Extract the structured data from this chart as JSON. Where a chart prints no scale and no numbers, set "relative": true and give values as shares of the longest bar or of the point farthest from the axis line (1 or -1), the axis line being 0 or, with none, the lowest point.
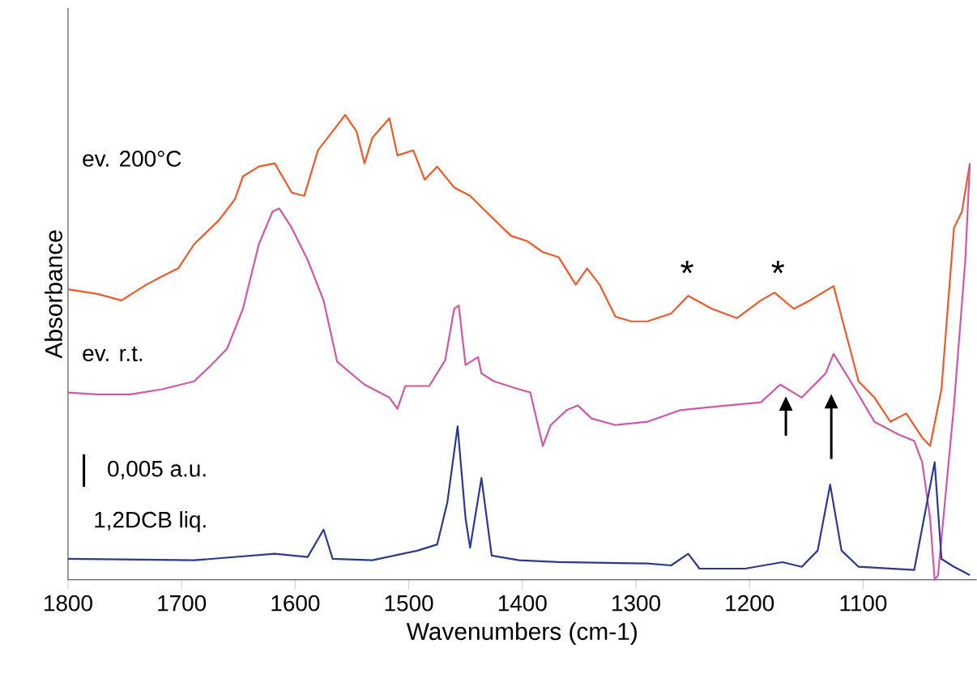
{
  "chart_data": {
    "type": "line",
    "xlabel": "Wavenumbers (cm-1)",
    "ylabel": "Absorbance",
    "relative": true,
    "xlim": [
      1800,
      1000
    ],
    "xticks": [
      1800,
      1700,
      1600,
      1500,
      1400,
      1300,
      1200,
      1100
    ],
    "tick_labels": "x",
    "legend": false,
    "grid": false,
    "marker": "none",
    "line_style": "solid",
    "annotations": [
      "0,005 a.u.",
      "*",
      "*"
    ],
    "series": [
      {
        "name": "ev. 200°C",
        "color": "#f05a28",
        "x": [
          1800,
          1774,
          1753,
          1731,
          1717,
          1703,
          1689,
          1667,
          1653,
          1646,
          1632,
          1618,
          1603,
          1592,
          1580,
          1567,
          1556,
          1546,
          1539,
          1532,
          1517,
          1510,
          1496,
          1486,
          1475,
          1460,
          1446,
          1432,
          1410,
          1396,
          1382,
          1368,
          1353,
          1343,
          1332,
          1318,
          1304,
          1290,
          1269,
          1254,
          1233,
          1211,
          1190,
          1178,
          1161,
          1147,
          1126,
          1119,
          1104,
          1090,
          1076,
          1062,
          1048,
          1041,
          1031,
          1020,
          1013,
          1006
        ],
        "values": [
          0.625,
          0.615,
          0.601,
          0.635,
          0.653,
          0.67,
          0.722,
          0.774,
          0.819,
          0.868,
          0.889,
          0.896,
          0.833,
          0.826,
          0.924,
          0.965,
          1.0,
          0.965,
          0.896,
          0.951,
          0.993,
          0.913,
          0.924,
          0.861,
          0.889,
          0.844,
          0.826,
          0.792,
          0.74,
          0.729,
          0.705,
          0.694,
          0.635,
          0.67,
          0.635,
          0.566,
          0.556,
          0.556,
          0.573,
          0.611,
          0.583,
          0.563,
          0.601,
          0.618,
          0.583,
          0.601,
          0.632,
          0.566,
          0.427,
          0.392,
          0.34,
          0.358,
          0.306,
          0.288,
          0.41,
          0.757,
          0.792,
          0.896
        ]
      },
      {
        "name": "ev. r.t.",
        "color": "#d158a8",
        "x": [
          1800,
          1774,
          1745,
          1717,
          1689,
          1674,
          1660,
          1646,
          1632,
          1620,
          1614,
          1603,
          1589,
          1575,
          1563,
          1539,
          1517,
          1510,
          1503,
          1482,
          1468,
          1460,
          1456,
          1450,
          1439,
          1436,
          1425,
          1403,
          1393,
          1382,
          1375,
          1361,
          1351,
          1339,
          1318,
          1290,
          1261,
          1233,
          1190,
          1173,
          1154,
          1133,
          1126,
          1111,
          1090,
          1069,
          1055,
          1048,
          1041,
          1037,
          1034,
          1020,
          1010,
          1006
        ],
        "values": [
          0.403,
          0.399,
          0.399,
          0.41,
          0.427,
          0.462,
          0.497,
          0.583,
          0.722,
          0.792,
          0.799,
          0.757,
          0.688,
          0.601,
          0.469,
          0.42,
          0.392,
          0.368,
          0.417,
          0.417,
          0.472,
          0.583,
          0.59,
          0.462,
          0.479,
          0.444,
          0.427,
          0.41,
          0.403,
          0.288,
          0.333,
          0.365,
          0.375,
          0.347,
          0.333,
          0.34,
          0.365,
          0.372,
          0.382,
          0.42,
          0.392,
          0.444,
          0.486,
          0.427,
          0.34,
          0.313,
          0.299,
          0.253,
          0.132,
          0.0,
          0.01,
          0.375,
          0.688,
          0.896
        ]
      },
      {
        "name": "1,2DCB liq.",
        "color": "#2b3990",
        "x": [
          1800,
          1689,
          1618,
          1589,
          1575,
          1567,
          1532,
          1492,
          1475,
          1466,
          1457,
          1450,
          1446,
          1436,
          1427,
          1403,
          1368,
          1290,
          1269,
          1254,
          1244,
          1204,
          1171,
          1154,
          1140,
          1129,
          1119,
          1104,
          1055,
          1037,
          1031,
          1020,
          1006
        ],
        "values": [
          0.045,
          0.042,
          0.056,
          0.049,
          0.108,
          0.045,
          0.042,
          0.063,
          0.076,
          0.167,
          0.33,
          0.132,
          0.069,
          0.219,
          0.052,
          0.042,
          0.038,
          0.035,
          0.031,
          0.056,
          0.024,
          0.024,
          0.038,
          0.028,
          0.063,
          0.205,
          0.063,
          0.028,
          0.021,
          0.253,
          0.045,
          0.028,
          0.01
        ]
      }
    ]
  }
}
